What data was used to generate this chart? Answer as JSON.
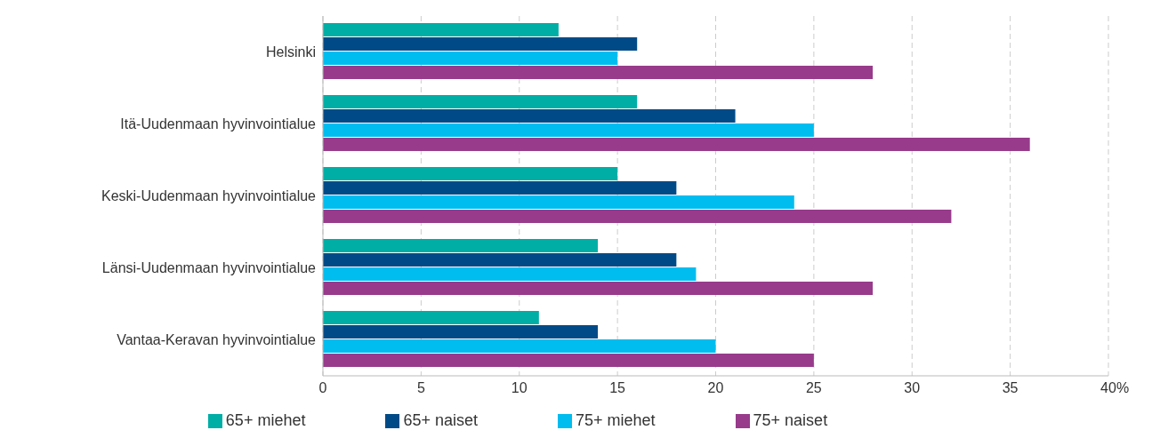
{
  "chart_data": {
    "type": "bar",
    "orientation": "horizontal",
    "xlabel": "%",
    "categories": [
      "Helsinki",
      "Itä-Uudenmaan hyvinvointialue",
      "Keski-Uudenmaan hyvinvointialue",
      "Länsi-Uudenmaan hyvinvointialue",
      "Vantaa-Keravan hyvinvointialue"
    ],
    "series": [
      {
        "name": "65+ miehet",
        "color": "#00aea6",
        "values": [
          12,
          16,
          15,
          14,
          11
        ]
      },
      {
        "name": "65+ naiset",
        "color": "#004b87",
        "values": [
          16,
          21,
          18,
          18,
          14
        ]
      },
      {
        "name": "75+ miehet",
        "color": "#00bdef",
        "values": [
          15,
          25,
          24,
          19,
          20
        ]
      },
      {
        "name": "75+ naiset",
        "color": "#983b8b",
        "values": [
          28,
          36,
          32,
          28,
          25
        ]
      }
    ],
    "xlim": [
      0,
      40
    ],
    "xticks": [
      0,
      5,
      10,
      15,
      20,
      25,
      30,
      35,
      40
    ],
    "grid": "x",
    "legend": "bottom"
  }
}
